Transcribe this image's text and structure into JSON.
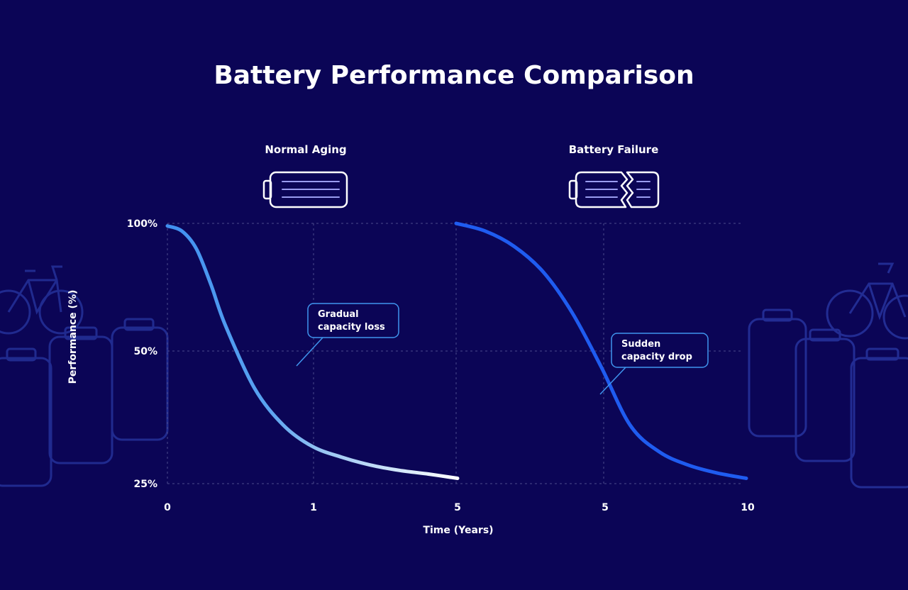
{
  "title": "Battery Performance Comparison",
  "colors": {
    "background": "#0b0556",
    "grid": "#4b4a8c",
    "normal_curve_start": "#3f8ff0",
    "normal_curve_end": "#ffffff",
    "failure_curve": "#1f5cf0",
    "callout_border": "#3f95ee",
    "decor": "#2a3aa8"
  },
  "icons": {
    "normal": "battery-icon",
    "failure": "broken-battery-icon",
    "decor_left": [
      "bicycle-icon",
      "battery-cell-icon"
    ],
    "decor_right": [
      "bicycle-icon",
      "battery-cell-icon"
    ]
  },
  "chart_data": {
    "type": "line",
    "title": "Battery Performance Comparison",
    "xlabel": "Time (Years)",
    "ylabel": "Performance (%)",
    "y_ticks": [
      "100%",
      "50%",
      "25%"
    ],
    "y_tick_values": [
      100,
      50,
      25
    ],
    "x_ticks": [
      "0",
      "1",
      "5",
      "5",
      "10"
    ],
    "grid": true,
    "panels": [
      {
        "name": "Normal Aging",
        "icon": "battery-icon",
        "x_ticks": [
          "0",
          "1",
          "5"
        ],
        "annotation": "Gradual capacity loss",
        "series": [
          {
            "x": [
              0,
              0.25,
              0.5,
              0.75,
              1,
              1.5,
              2,
              2.5,
              3,
              3.5,
              4,
              4.5,
              5
            ],
            "y": [
              99,
              97,
              90,
              76,
              60,
              43,
              36,
              32,
              30,
              28.5,
              27.5,
              26.8,
              26
            ]
          }
        ]
      },
      {
        "name": "Battery Failure",
        "icon": "broken-battery-icon",
        "x_ticks": [
          "5",
          "10"
        ],
        "annotation": "Sudden capacity drop",
        "series": [
          {
            "x": [
              0,
              0.5,
              1,
              1.5,
              2,
              2.5,
              3,
              3.5,
              4,
              4.5,
              5
            ],
            "y": [
              100,
              97,
              91,
              81,
              65,
              47,
              36,
              31,
              28.5,
              27,
              26
            ]
          }
        ]
      }
    ]
  }
}
